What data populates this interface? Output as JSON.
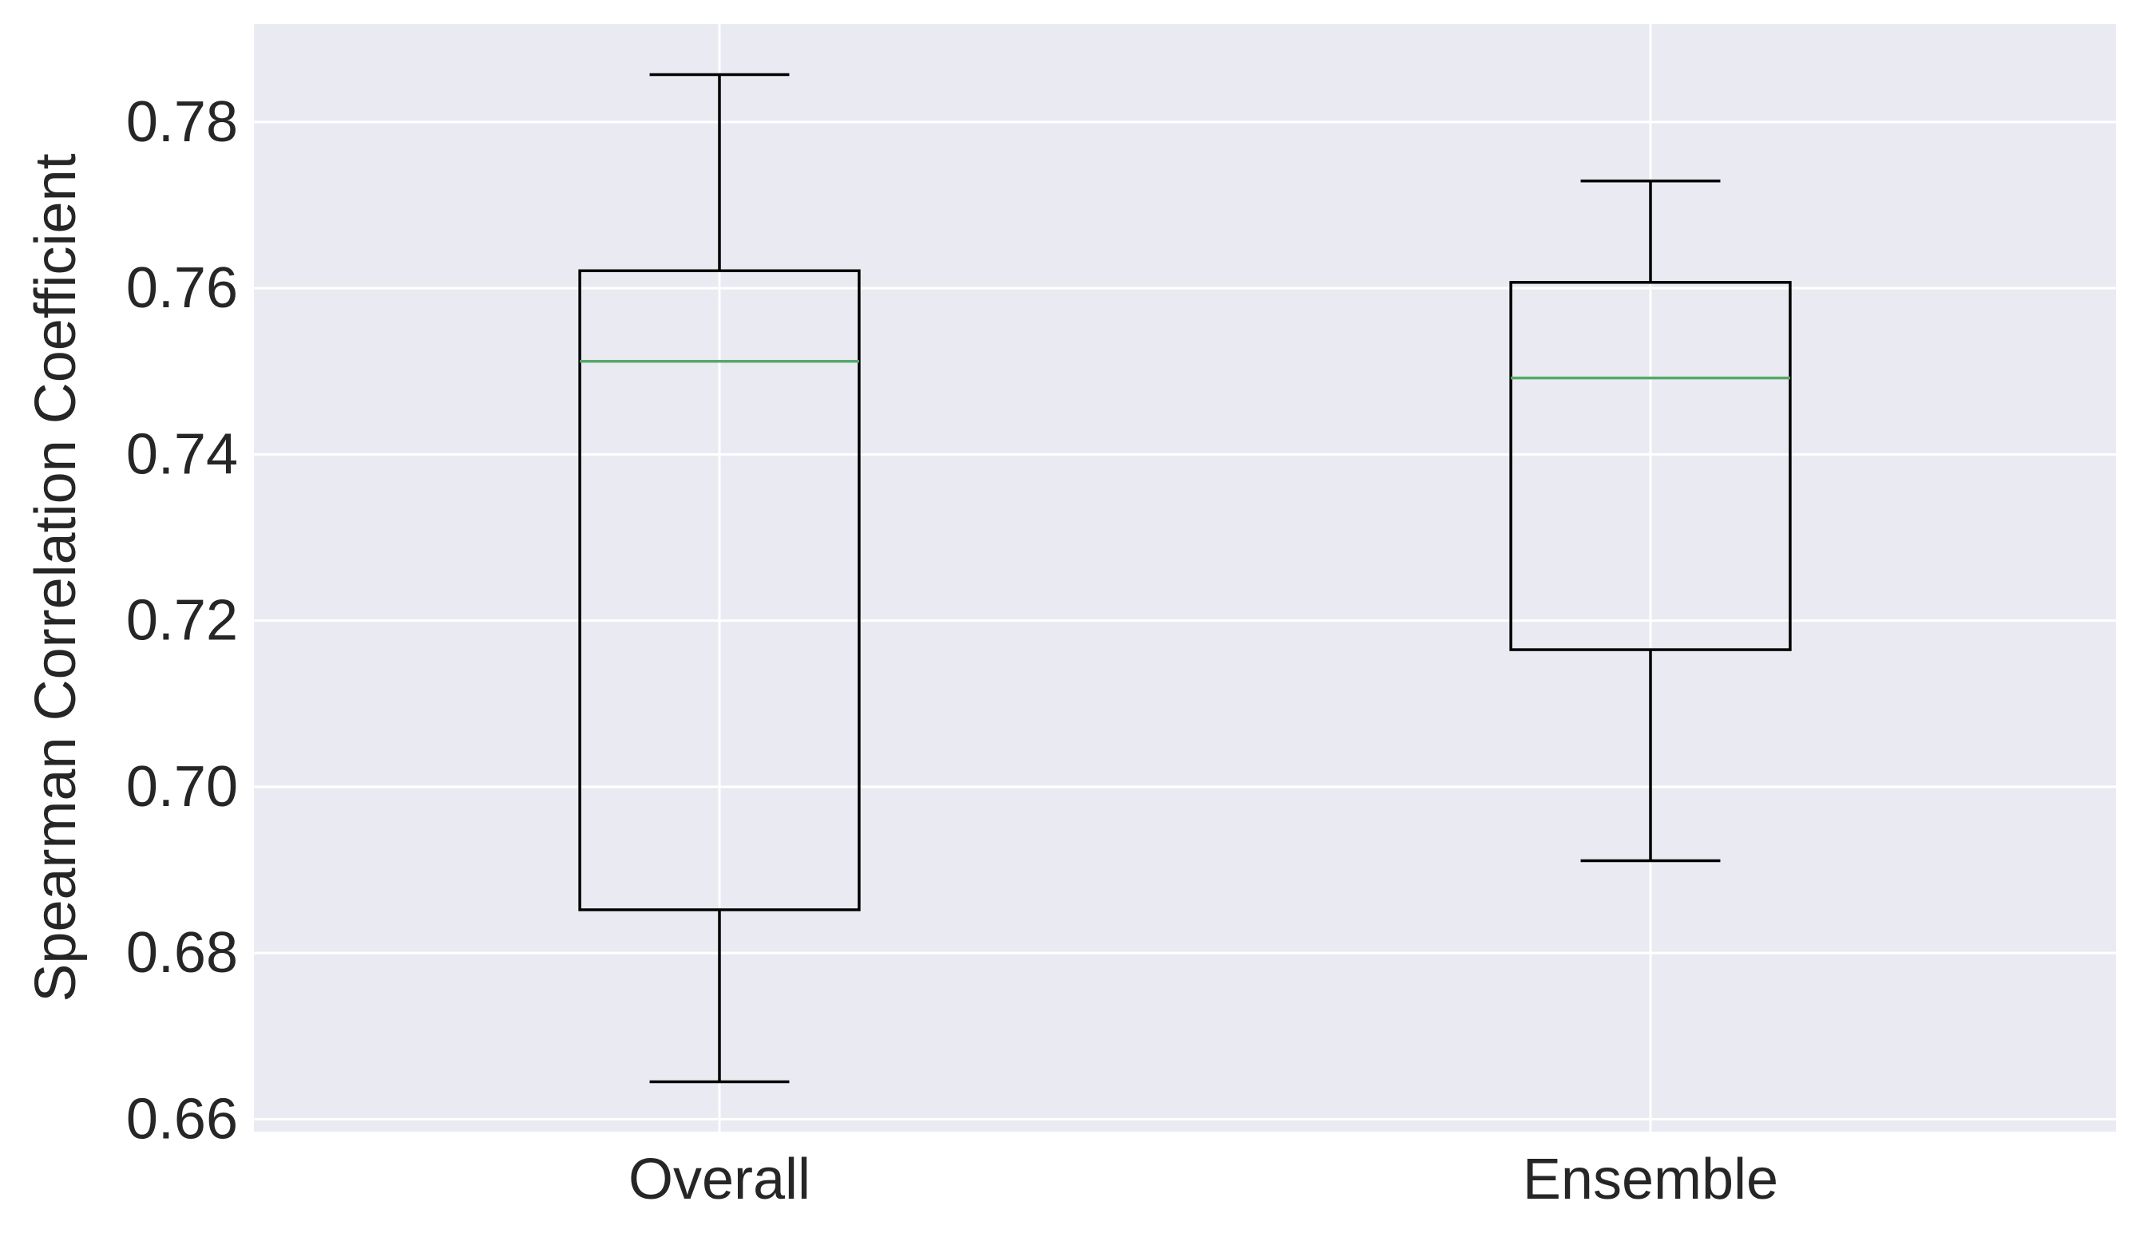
{
  "chart_data": {
    "type": "box",
    "title": "",
    "xlabel": "",
    "ylabel": "Spearman Correlation Coefficient",
    "categories": [
      "Overall",
      "Ensemble"
    ],
    "boxes": [
      {
        "category": "Overall",
        "whisker_low": 0.6645,
        "q1": 0.6852,
        "median": 0.7512,
        "q3": 0.7621,
        "whisker_high": 0.7857
      },
      {
        "category": "Ensemble",
        "whisker_low": 0.6911,
        "q1": 0.7165,
        "median": 0.7492,
        "q3": 0.7607,
        "whisker_high": 0.7729
      }
    ],
    "ylim": [
      0.6585,
      0.7918
    ],
    "yticks": [
      0.66,
      0.68,
      0.7,
      0.72,
      0.74,
      0.76,
      0.78
    ],
    "ytick_labels": [
      "0.66",
      "0.68",
      "0.70",
      "0.72",
      "0.74",
      "0.76",
      "0.78"
    ],
    "grid": true,
    "colors": {
      "background": "#eaeaf2",
      "grid": "#ffffff",
      "box": "#000000",
      "median": "#55a868",
      "text": "#262626"
    }
  }
}
